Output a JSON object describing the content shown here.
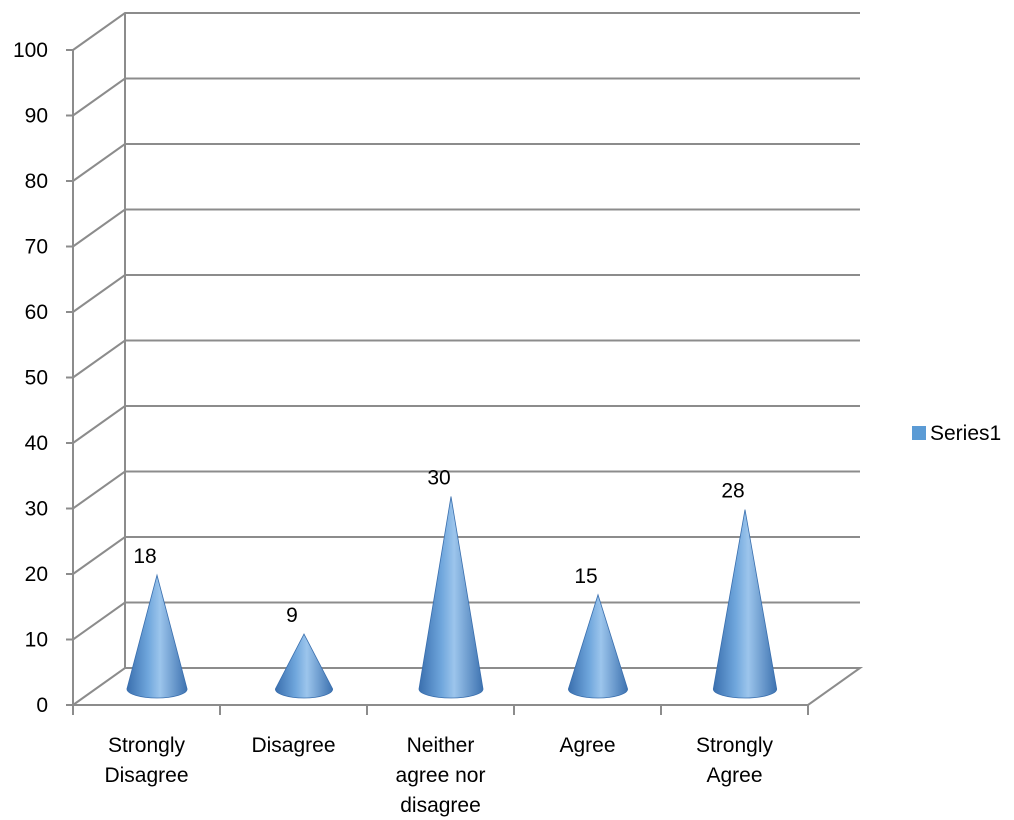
{
  "chart_data": {
    "type": "bar",
    "style": "3d-cone",
    "categories": [
      [
        "Strongly",
        "Disagree"
      ],
      [
        "Disagree"
      ],
      [
        "Neither",
        "agree nor",
        "disagree"
      ],
      [
        "Agree"
      ],
      [
        "Strongly",
        "Agree"
      ]
    ],
    "series": [
      {
        "name": "Series1",
        "values": [
          18,
          9,
          30,
          15,
          28
        ],
        "color": "#5b9bd5"
      }
    ],
    "data_labels": [
      "18",
      "9",
      "30",
      "15",
      "28"
    ],
    "y_ticks": [
      "0",
      "10",
      "20",
      "30",
      "40",
      "50",
      "60",
      "70",
      "80",
      "90",
      "100"
    ],
    "ylim": [
      0,
      100
    ],
    "grid": true,
    "legend_position": "right",
    "title": "",
    "xlabel": "",
    "ylabel": ""
  }
}
